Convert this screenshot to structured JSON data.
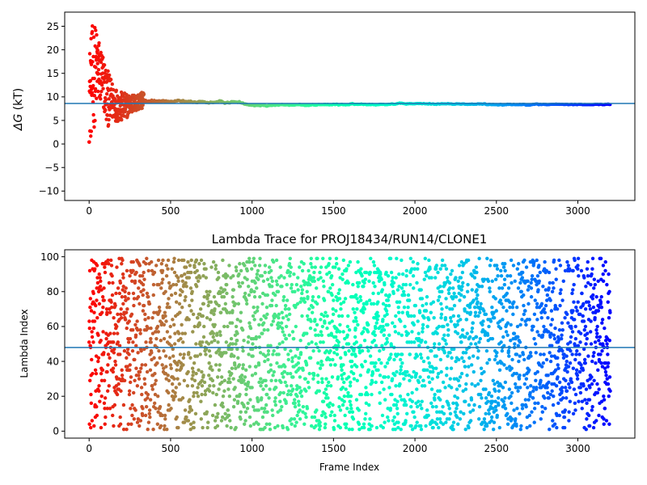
{
  "chart_data": [
    {
      "type": "scatter",
      "title": "",
      "xlabel": "",
      "ylabel": "ΔG (kT)",
      "ylabel_parts": {
        "sym": "ΔG",
        "unit": " (kT)"
      },
      "xlim": [
        -150,
        3350
      ],
      "ylim": [
        -12,
        28
      ],
      "xticks": [
        0,
        500,
        1000,
        1500,
        2000,
        2500,
        3000
      ],
      "yticks": [
        -10,
        -5,
        0,
        5,
        10,
        15,
        20,
        25
      ],
      "hline": 8.6,
      "hline_color": "#1f77b4",
      "colormap": "rainbow",
      "grid": false,
      "n_frames": 3200,
      "series_description": "Running free-energy estimate per frame; scattered early, converging near 8.5 kT",
      "envelope": [
        {
          "x": 0,
          "lo": 0,
          "hi": 20
        },
        {
          "x": 25,
          "lo": 2,
          "hi": 26.5
        },
        {
          "x": 50,
          "lo": 8,
          "hi": 24
        },
        {
          "x": 80,
          "lo": 8,
          "hi": 20
        },
        {
          "x": 110,
          "lo": 3.5,
          "hi": 16
        },
        {
          "x": 150,
          "lo": 5,
          "hi": 12.5
        },
        {
          "x": 200,
          "lo": 4.5,
          "hi": 11
        },
        {
          "x": 260,
          "lo": 6.5,
          "hi": 10.5
        },
        {
          "x": 330,
          "lo": 7.5,
          "hi": 11
        },
        {
          "x": 450,
          "lo": 8,
          "hi": 10
        },
        {
          "x": 700,
          "lo": 8.2,
          "hi": 9.5
        },
        {
          "x": 900,
          "lo": 8.3,
          "hi": 9.5
        },
        {
          "x": 1000,
          "lo": 7.7,
          "hi": 8.8
        },
        {
          "x": 1500,
          "lo": 7.9,
          "hi": 8.8
        },
        {
          "x": 2000,
          "lo": 8.2,
          "hi": 8.9
        },
        {
          "x": 2500,
          "lo": 8.0,
          "hi": 8.8
        },
        {
          "x": 3200,
          "lo": 8.1,
          "hi": 8.7
        }
      ]
    },
    {
      "type": "scatter",
      "title": "Lambda Trace for PROJ18434/RUN14/CLONE1",
      "xlabel": "Frame Index",
      "ylabel": "Lambda Index",
      "xlim": [
        -150,
        3350
      ],
      "ylim": [
        -4,
        104
      ],
      "xticks": [
        0,
        500,
        1000,
        1500,
        2000,
        2500,
        3000
      ],
      "yticks": [
        0,
        20,
        40,
        60,
        80,
        100
      ],
      "hline": 48,
      "hline_color": "#1f77b4",
      "colormap": "rainbow",
      "grid": false,
      "n_frames": 3200,
      "value_range": [
        1,
        99
      ],
      "series_description": "Lambda index visited at each frame, spread roughly uniformly between 1 and 99"
    }
  ]
}
